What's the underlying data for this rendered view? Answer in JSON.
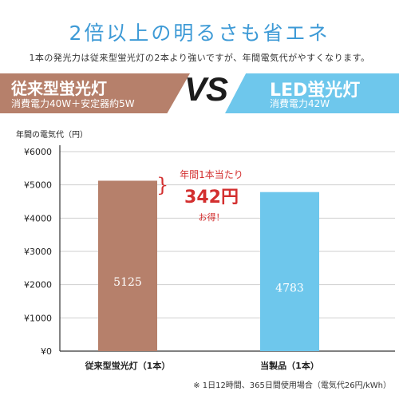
{
  "headline": "2倍以上の明るさも省エネ",
  "subline": "1本の発光力は従来型蛍光灯の2本より強いですが、年間電気代がやすくなります。",
  "left_banner": {
    "name": "従来型蛍光灯",
    "spec": "消費電力40W＋安定器約5W",
    "color": "#b6806b"
  },
  "vs_label": "VS",
  "right_banner": {
    "name": "LED蛍光灯",
    "spec": "消費電力42W",
    "color": "#6ec7ec"
  },
  "callout": {
    "line1": "年間1本当たり",
    "amount": "342円",
    "line3": "お得！"
  },
  "footnote": "※ 1日12時間、365日間使用場合（電気代26円/kWh）",
  "chart_data": {
    "type": "bar",
    "ylabel": "年間の電気代（円）",
    "ylim": [
      0,
      6000
    ],
    "yticks": [
      0,
      1000,
      2000,
      3000,
      4000,
      5000,
      6000
    ],
    "ytick_labels": [
      "¥0",
      "¥1000",
      "¥2000",
      "¥3000",
      "¥4000",
      "¥5000",
      "¥6000"
    ],
    "categories": [
      "従来型蛍光灯（1本）",
      "当製品（1本）"
    ],
    "values": [
      5125,
      4783
    ],
    "value_labels": [
      "5125",
      "4783"
    ],
    "bar_colors": [
      "#b6806b",
      "#6ec7ec"
    ],
    "grid": true
  }
}
